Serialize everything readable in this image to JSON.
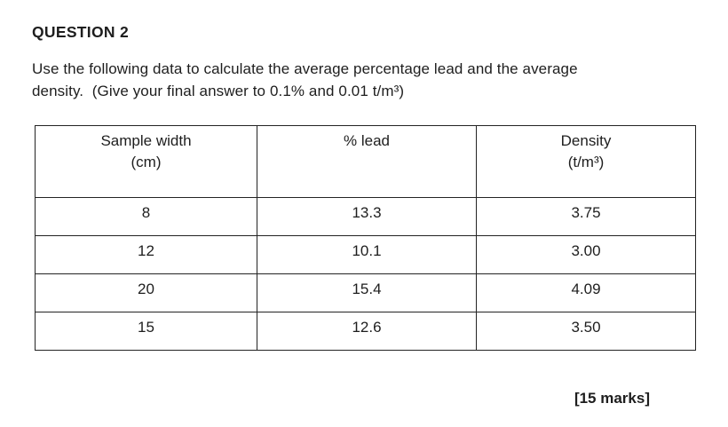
{
  "heading": "QUESTION 2",
  "instructions": "Use the following data to calculate the average percentage lead and the average\ndensity.  (Give your final answer to 0.1% and 0.01 t/m³)",
  "table": {
    "headers": [
      {
        "line1": "Sample width",
        "line2": "(cm)"
      },
      {
        "line1": "% lead",
        "line2": ""
      },
      {
        "line1": "Density",
        "line2": "(t/m³)"
      }
    ],
    "rows": [
      [
        "8",
        "13.3",
        "3.75"
      ],
      [
        "12",
        "10.1",
        "3.00"
      ],
      [
        "20",
        "15.4",
        "4.09"
      ],
      [
        "15",
        "12.6",
        "3.50"
      ]
    ]
  },
  "marks": "[15 marks]"
}
